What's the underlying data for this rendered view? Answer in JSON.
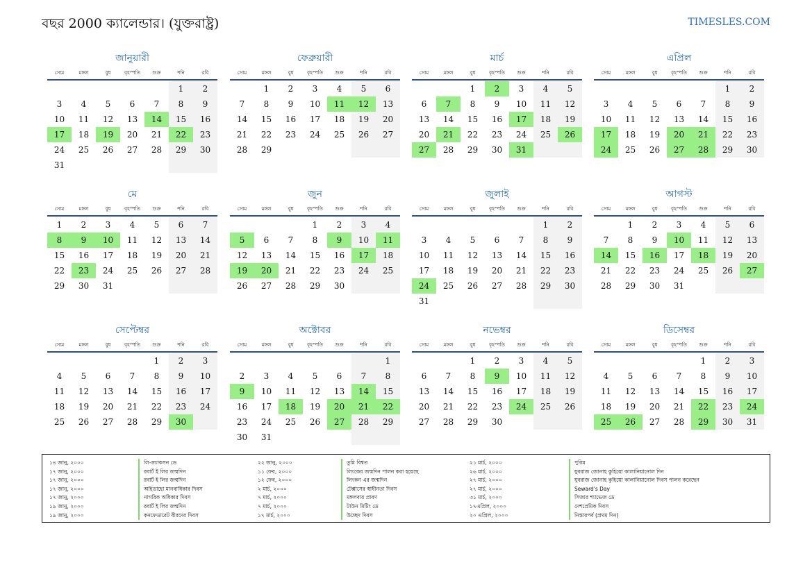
{
  "header": {
    "title": "বছর 2000 ক্যালেন্ডার। (যুক্তরাষ্ট্র)",
    "brand": "TIMESLES.COM"
  },
  "weekday_labels": [
    "সোম",
    "মঙ্গল",
    "বুধ",
    "বৃহস্পতি",
    "শুক্র",
    "শনি",
    "রবি"
  ],
  "months": [
    {
      "name": "জানুয়ারী",
      "offset": 5,
      "days": 31,
      "holidays": [
        14,
        17,
        19,
        22
      ]
    },
    {
      "name": "ফেব্রুয়ারী",
      "offset": 1,
      "days": 29,
      "holidays": [
        11,
        12
      ]
    },
    {
      "name": "মার্চ",
      "offset": 2,
      "days": 31,
      "holidays": [
        2,
        7,
        17,
        21,
        26,
        27,
        31
      ]
    },
    {
      "name": "এপ্রিল",
      "offset": 5,
      "days": 30,
      "holidays": [
        17,
        20,
        21,
        24,
        27,
        28
      ]
    },
    {
      "name": "মে",
      "offset": 0,
      "days": 31,
      "holidays": [
        8,
        9,
        10,
        23
      ]
    },
    {
      "name": "জুন",
      "offset": 3,
      "days": 30,
      "holidays": [
        5,
        9,
        11,
        17,
        19,
        20
      ]
    },
    {
      "name": "জুলাই",
      "offset": 5,
      "days": 31,
      "holidays": [
        24
      ]
    },
    {
      "name": "আগস্ট",
      "offset": 1,
      "days": 31,
      "holidays": [
        10,
        14,
        16,
        18,
        27
      ]
    },
    {
      "name": "সেপ্টেম্বর",
      "offset": 4,
      "days": 30,
      "holidays": [
        30
      ]
    },
    {
      "name": "অক্টোবর",
      "offset": 6,
      "days": 31,
      "holidays": [
        9,
        14,
        18,
        20,
        21,
        22,
        27
      ]
    },
    {
      "name": "নভেম্বর",
      "offset": 2,
      "days": 30,
      "holidays": [
        9,
        24
      ]
    },
    {
      "name": "ডিসেম্বর",
      "offset": 4,
      "days": 31,
      "holidays": [
        22,
        24,
        25,
        26,
        29
      ]
    }
  ],
  "holiday_list": [
    {
      "date": "১৪ জানু, ২০০০",
      "name": "লি-জ্যাকসন ডে"
    },
    {
      "date": "১৭ জানু, ২০০০",
      "name": "রবার্ট ই লির জন্মদিন"
    },
    {
      "date": "১৭ জানু, ২০০০",
      "name": "রবার্ট ই লির জন্মদিন"
    },
    {
      "date": "১৭ জানু, ২০০০",
      "name": "অহিডাহো মানবাধিকার দিবস"
    },
    {
      "date": "১৭ জানু, ২০০০",
      "name": "নাগরিক অধিকার দিবস"
    },
    {
      "date": "১৯ জানু, ২০০০",
      "name": "রবার্ট ই লির জন্মদিন"
    },
    {
      "date": "১৯ জানু, ২০০০",
      "name": "কনফেডারেট বীরদের দিবস"
    },
    {
      "date": "২২ জানু, ২০০০",
      "name": "তুমি বিশ্বত"
    },
    {
      "date": "১১ ফেব, ২০০০",
      "name": "লিংকের জন্মদিন পালন করা হয়েছে"
    },
    {
      "date": "১২ ফেব, ২০০০",
      "name": "লিংকন এর জন্মদিন"
    },
    {
      "date": "২ মার্চ, ২০০০",
      "name": "টেক্সাসের স্বাধীনতা দিবস"
    },
    {
      "date": "৭ মার্চ, ২০০০",
      "name": "মঙ্গলবার প্রাবণ"
    },
    {
      "date": "৭ মার্চ, ২০০০",
      "name": "টাউন মিটিং ডে"
    },
    {
      "date": "১৭ মার্চ, ২০০০",
      "name": "উচ্ছেদ দিবস"
    },
    {
      "date": "২১ মার্চ, ২০০০",
      "name": "পুরিম"
    },
    {
      "date": "২৬ মার্চ, ২০০০",
      "name": "যুবরাজ জোনাহ কুহিয়ো কালানিয়ানোল দিন"
    },
    {
      "date": "২৭ মার্চ, ২০০০",
      "name": "যুবরাজ জোনাহ কুহিয়ো কালানিয়ানোল দিবস পালন করেছেন"
    },
    {
      "date": "২৭ মার্চ, ২০০০",
      "name": "Seward's Day"
    },
    {
      "date": "৩১ মার্চ, ২০০০",
      "name": "সিজার শ্যাভেজ ডে"
    },
    {
      "date": "১৭এপ্রিল, ২০০০",
      "name": "দেশপ্রেমিক দিবস"
    },
    {
      "date": "২০ এপ্রিল, ২০০০",
      "name": "নিস্তারপর্ব (প্রথম দিন)"
    }
  ]
}
